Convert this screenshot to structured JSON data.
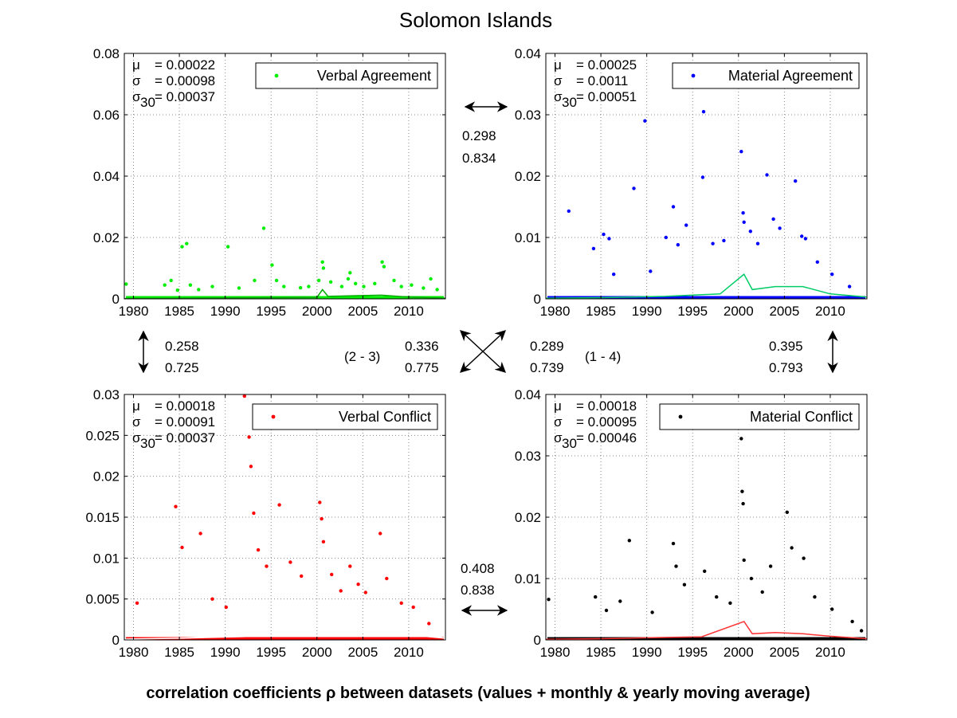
{
  "title": "Solomon Islands",
  "footer": "correlation coefficients ρ between datasets (values + monthly & yearly moving average)",
  "correlations": {
    "top_horizontal": [
      "0.298",
      "0.834"
    ],
    "bottom_horizontal": [
      "0.408",
      "0.838"
    ],
    "left_vertical": [
      "0.258",
      "0.725"
    ],
    "right_vertical": [
      "0.395",
      "0.793"
    ],
    "diag_left": [
      "0.336",
      "0.775"
    ],
    "diag_right": [
      "0.289",
      "0.739"
    ],
    "diag_left_label": "(2 - 3)",
    "diag_right_label": "(1 - 4)"
  },
  "chart_data": [
    {
      "type": "scatter",
      "title": "",
      "series": [
        {
          "name": "Verbal Agreement",
          "color": "#00ee00",
          "marker": "dot"
        }
      ],
      "stats": {
        "mu_label": "μ",
        "mu": "= 0.00022",
        "sigma_label": "σ",
        "sigma": "= 0.00098",
        "sigma30_label": "σ",
        "sigma30_sub": "30",
        "sigma30": "= 0.00037"
      },
      "xlim": [
        1979,
        2014
      ],
      "ylim": [
        0,
        0.08
      ],
      "xticks": [
        "1980",
        "1985",
        "1990",
        "1995",
        "2000",
        "2005",
        "2010"
      ],
      "xtick_values": [
        1980,
        1985,
        1990,
        1995,
        2000,
        2005,
        2010
      ],
      "yticks": [
        "0",
        "0.02",
        "0.04",
        "0.06",
        "0.08"
      ],
      "ytick_values": [
        0,
        0.02,
        0.04,
        0.06,
        0.08
      ],
      "grid": true,
      "points": [
        [
          1979.2,
          0.0048
        ],
        [
          1983.4,
          0.0045
        ],
        [
          1984.1,
          0.006
        ],
        [
          1984.8,
          0.0028
        ],
        [
          1985.3,
          0.017
        ],
        [
          1985.8,
          0.018
        ],
        [
          1986.2,
          0.0045
        ],
        [
          1987.1,
          0.003
        ],
        [
          1988.6,
          0.004
        ],
        [
          1990.3,
          0.017
        ],
        [
          1991.5,
          0.0035
        ],
        [
          1993.2,
          0.006
        ],
        [
          1994.2,
          0.023
        ],
        [
          1995.1,
          0.011
        ],
        [
          1995.6,
          0.006
        ],
        [
          1996.4,
          0.004
        ],
        [
          1998.2,
          0.0036
        ],
        [
          1999.1,
          0.004
        ],
        [
          2000.2,
          0.006
        ],
        [
          2000.6,
          0.012
        ],
        [
          2000.7,
          0.01
        ],
        [
          2001.5,
          0.0055
        ],
        [
          2002.7,
          0.004
        ],
        [
          2003.4,
          0.0065
        ],
        [
          2003.6,
          0.0085
        ],
        [
          2004.2,
          0.005
        ],
        [
          2005.1,
          0.004
        ],
        [
          2006.3,
          0.005
        ],
        [
          2007.1,
          0.012
        ],
        [
          2007.3,
          0.0105
        ],
        [
          2008.4,
          0.006
        ],
        [
          2009.2,
          0.004
        ],
        [
          2010.3,
          0.0045
        ],
        [
          2011.6,
          0.0035
        ],
        [
          2012.4,
          0.0065
        ],
        [
          2013.1,
          0.003
        ]
      ],
      "moving_average_color": "#00aa00",
      "moving_average": [
        [
          1979,
          0.0001
        ],
        [
          1984,
          0.0002
        ],
        [
          1990,
          0.0003
        ],
        [
          1995,
          0.0004
        ],
        [
          2000,
          0.0005
        ],
        [
          2000.6,
          0.003
        ],
        [
          2001.2,
          0.0008
        ],
        [
          2004,
          0.001
        ],
        [
          2007,
          0.0012
        ],
        [
          2010,
          0.0006
        ],
        [
          2014,
          0.0002
        ]
      ]
    },
    {
      "type": "scatter",
      "title": "",
      "series": [
        {
          "name": "Material Agreement",
          "color": "#0000ff",
          "marker": "dot"
        }
      ],
      "stats": {
        "mu_label": "μ",
        "mu": "= 0.00025",
        "sigma_label": "σ",
        "sigma": "= 0.0011",
        "sigma30_label": "σ",
        "sigma30_sub": "30",
        "sigma30": "= 0.00051"
      },
      "xlim": [
        1979,
        2014
      ],
      "ylim": [
        0,
        0.04
      ],
      "xticks": [
        "1980",
        "1985",
        "1990",
        "1995",
        "2000",
        "2005",
        "2010"
      ],
      "xtick_values": [
        1980,
        1985,
        1990,
        1995,
        2000,
        2005,
        2010
      ],
      "yticks": [
        "0",
        "0.01",
        "0.02",
        "0.03",
        "0.04"
      ],
      "ytick_values": [
        0,
        0.01,
        0.02,
        0.03,
        0.04
      ],
      "grid": true,
      "points": [
        [
          1981.5,
          0.0143
        ],
        [
          1984.2,
          0.0082
        ],
        [
          1985.3,
          0.0105
        ],
        [
          1985.9,
          0.0098
        ],
        [
          1986.4,
          0.004
        ],
        [
          1988.6,
          0.018
        ],
        [
          1989.8,
          0.029
        ],
        [
          1990.4,
          0.0045
        ],
        [
          1992.1,
          0.01
        ],
        [
          1992.9,
          0.015
        ],
        [
          1993.4,
          0.0088
        ],
        [
          1994.3,
          0.012
        ],
        [
          1996.2,
          0.0305
        ],
        [
          1996.1,
          0.0198
        ],
        [
          1997.2,
          0.009
        ],
        [
          1998.4,
          0.0095
        ],
        [
          2000.3,
          0.024
        ],
        [
          2000.5,
          0.014
        ],
        [
          2000.6,
          0.0125
        ],
        [
          2001.3,
          0.011
        ],
        [
          2002.1,
          0.009
        ],
        [
          2003.1,
          0.0202
        ],
        [
          2003.8,
          0.013
        ],
        [
          2004.5,
          0.0115
        ],
        [
          2006.2,
          0.0192
        ],
        [
          2006.9,
          0.0102
        ],
        [
          2007.3,
          0.0098
        ],
        [
          2008.6,
          0.006
        ],
        [
          2010.2,
          0.004
        ],
        [
          2012.1,
          0.002
        ]
      ],
      "moving_average_color": "#00cc66",
      "moving_average": [
        [
          1979,
          0.0001
        ],
        [
          1985,
          0.0002
        ],
        [
          1992,
          0.0004
        ],
        [
          1998,
          0.0008
        ],
        [
          2000.6,
          0.004
        ],
        [
          2001.5,
          0.0015
        ],
        [
          2004,
          0.002
        ],
        [
          2007,
          0.002
        ],
        [
          2010,
          0.0008
        ],
        [
          2014,
          0.0003
        ]
      ]
    },
    {
      "type": "scatter",
      "title": "",
      "series": [
        {
          "name": "Verbal Conflict",
          "color": "#ff0000",
          "marker": "dot"
        }
      ],
      "stats": {
        "mu_label": "μ",
        "mu": "= 0.00018",
        "sigma_label": "σ",
        "sigma": "= 0.00091",
        "sigma30_label": "σ",
        "sigma30_sub": "30",
        "sigma30": "= 0.00037"
      },
      "xlim": [
        1979,
        2014
      ],
      "ylim": [
        0,
        0.03
      ],
      "xticks": [
        "1980",
        "1985",
        "1990",
        "1995",
        "2000",
        "2005",
        "2010"
      ],
      "xtick_values": [
        1980,
        1985,
        1990,
        1995,
        2000,
        2005,
        2010
      ],
      "yticks": [
        "0",
        "0.005",
        "0.01",
        "0.015",
        "0.02",
        "0.025",
        "0.03"
      ],
      "ytick_values": [
        0,
        0.005,
        0.01,
        0.015,
        0.02,
        0.025,
        0.03
      ],
      "grid": true,
      "points": [
        [
          1980.4,
          0.0045
        ],
        [
          1984.6,
          0.0163
        ],
        [
          1985.3,
          0.0113
        ],
        [
          1987.3,
          0.013
        ],
        [
          1988.6,
          0.005
        ],
        [
          1990.1,
          0.004
        ],
        [
          1992.1,
          0.0298
        ],
        [
          1992.6,
          0.0248
        ],
        [
          1992.8,
          0.0212
        ],
        [
          1993.1,
          0.0155
        ],
        [
          1993.6,
          0.011
        ],
        [
          1994.5,
          0.009
        ],
        [
          1995.9,
          0.0165
        ],
        [
          1997.1,
          0.0095
        ],
        [
          1998.3,
          0.0078
        ],
        [
          2000.3,
          0.0168
        ],
        [
          2000.5,
          0.0148
        ],
        [
          2000.7,
          0.012
        ],
        [
          2001.6,
          0.008
        ],
        [
          2002.6,
          0.006
        ],
        [
          2003.6,
          0.009
        ],
        [
          2004.5,
          0.0068
        ],
        [
          2005.3,
          0.0058
        ],
        [
          2006.9,
          0.013
        ],
        [
          2007.6,
          0.0075
        ],
        [
          2009.2,
          0.0045
        ],
        [
          2010.5,
          0.004
        ],
        [
          2012.2,
          0.002
        ]
      ],
      "moving_average_color": "#ffffff",
      "moving_average": [
        [
          1979,
          0.0001
        ],
        [
          1985,
          0.0002
        ],
        [
          1992,
          0.0004
        ],
        [
          1996,
          0.0006
        ],
        [
          2000.6,
          0.002
        ],
        [
          2001.5,
          0.0008
        ],
        [
          2004,
          0.0012
        ],
        [
          2007,
          0.0011
        ],
        [
          2010,
          0.0006
        ],
        [
          2014,
          0.0002
        ]
      ]
    },
    {
      "type": "scatter",
      "title": "",
      "series": [
        {
          "name": "Material Conflict",
          "color": "#000000",
          "marker": "dot"
        }
      ],
      "stats": {
        "mu_label": "μ",
        "mu": "= 0.00018",
        "sigma_label": "σ",
        "sigma": "= 0.00095",
        "sigma30_label": "σ",
        "sigma30_sub": "30",
        "sigma30": "= 0.00046"
      },
      "xlim": [
        1979,
        2014
      ],
      "ylim": [
        0,
        0.04
      ],
      "xticks": [
        "1980",
        "1985",
        "1990",
        "1995",
        "2000",
        "2005",
        "2010"
      ],
      "xtick_values": [
        1980,
        1985,
        1990,
        1995,
        2000,
        2005,
        2010
      ],
      "yticks": [
        "0",
        "0.01",
        "0.02",
        "0.03",
        "0.04"
      ],
      "ytick_values": [
        0,
        0.01,
        0.02,
        0.03,
        0.04
      ],
      "grid": true,
      "points": [
        [
          1979.3,
          0.0066
        ],
        [
          1984.4,
          0.007
        ],
        [
          1985.6,
          0.0048
        ],
        [
          1987.1,
          0.0063
        ],
        [
          1988.1,
          0.0162
        ],
        [
          1990.6,
          0.0045
        ],
        [
          1992.9,
          0.0157
        ],
        [
          1993.2,
          0.012
        ],
        [
          1994.1,
          0.009
        ],
        [
          1996.3,
          0.0112
        ],
        [
          1997.6,
          0.007
        ],
        [
          1999.1,
          0.006
        ],
        [
          2000.3,
          0.0328
        ],
        [
          2000.4,
          0.0242
        ],
        [
          2000.5,
          0.0222
        ],
        [
          2000.6,
          0.013
        ],
        [
          2001.4,
          0.01
        ],
        [
          2002.6,
          0.0078
        ],
        [
          2003.5,
          0.012
        ],
        [
          2005.3,
          0.0208
        ],
        [
          2005.8,
          0.015
        ],
        [
          2007.1,
          0.0133
        ],
        [
          2008.3,
          0.007
        ],
        [
          2010.2,
          0.005
        ],
        [
          2012.4,
          0.003
        ],
        [
          2013.4,
          0.0015
        ]
      ],
      "moving_average_color": "#ff3333",
      "moving_average": [
        [
          1979,
          0.0001
        ],
        [
          1985,
          0.0002
        ],
        [
          1992,
          0.0004
        ],
        [
          1996,
          0.0005
        ],
        [
          2000.6,
          0.003
        ],
        [
          2001.5,
          0.001
        ],
        [
          2004,
          0.0012
        ],
        [
          2007,
          0.001
        ],
        [
          2010,
          0.0006
        ],
        [
          2014,
          0.0002
        ]
      ]
    }
  ]
}
